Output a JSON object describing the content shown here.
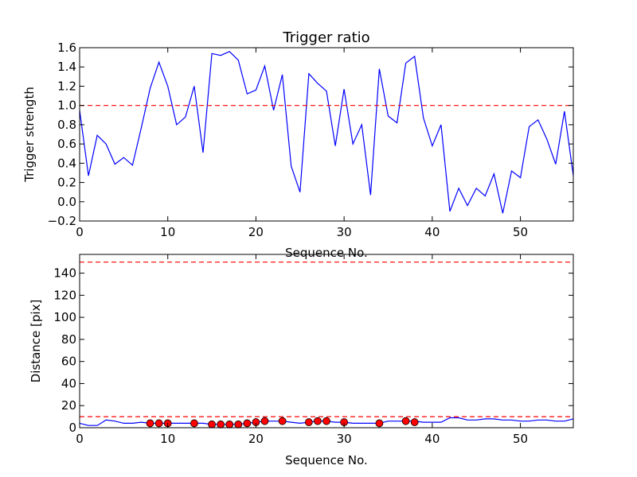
{
  "chart_data": [
    {
      "type": "line",
      "title": "Trigger ratio",
      "xlabel": "Sequence No.",
      "ylabel": "Trigger strength",
      "xlim": [
        0,
        56
      ],
      "ylim": [
        -0.2,
        1.6
      ],
      "xticks": [
        0,
        10,
        20,
        30,
        40,
        50
      ],
      "xtick_labels": [
        "0",
        "10",
        "20",
        "30",
        "40",
        "50"
      ],
      "yticks": [
        -0.2,
        0.0,
        0.2,
        0.4,
        0.6,
        0.8,
        1.0,
        1.2,
        1.4,
        1.6
      ],
      "ytick_labels": [
        "−0.2",
        "0.0",
        "0.2",
        "0.4",
        "0.6",
        "0.8",
        "1.0",
        "1.2",
        "1.4",
        "1.6"
      ],
      "grid": false,
      "series": [
        {
          "color": "#0000ff",
          "style": "solid",
          "x": [
            0,
            1,
            2,
            3,
            4,
            5,
            6,
            7,
            8,
            9,
            10,
            11,
            12,
            13,
            14,
            15,
            16,
            17,
            18,
            19,
            20,
            21,
            22,
            23,
            24,
            25,
            26,
            27,
            28,
            29,
            30,
            31,
            32,
            33,
            34,
            35,
            36,
            37,
            38,
            39,
            40,
            41,
            42,
            43,
            44,
            45,
            46,
            47,
            48,
            49,
            50,
            51,
            52,
            53,
            54,
            55,
            56
          ],
          "y": [
            0.95,
            0.27,
            0.69,
            0.6,
            0.39,
            0.46,
            0.38,
            0.77,
            1.18,
            1.45,
            1.2,
            0.8,
            0.88,
            1.2,
            0.51,
            1.54,
            1.52,
            1.56,
            1.47,
            1.12,
            1.16,
            1.41,
            0.95,
            1.32,
            0.37,
            0.1,
            1.33,
            1.23,
            1.15,
            0.58,
            1.17,
            0.6,
            0.8,
            0.07,
            1.38,
            0.89,
            0.82,
            1.44,
            1.51,
            0.87,
            0.58,
            0.8,
            -0.1,
            0.14,
            -0.04,
            0.14,
            0.06,
            0.29,
            -0.12,
            0.32,
            0.25,
            0.78,
            0.85,
            0.65,
            0.39,
            0.94,
            0.27
          ]
        },
        {
          "color": "#ff0000",
          "style": "dashed",
          "x": [
            0,
            56
          ],
          "y": [
            1.0,
            1.0
          ]
        }
      ]
    },
    {
      "type": "line",
      "title": "",
      "xlabel": "Sequence No.",
      "ylabel": "Distance [pix]",
      "xlim": [
        0,
        56
      ],
      "ylim": [
        0,
        157
      ],
      "xticks": [
        0,
        10,
        20,
        30,
        40,
        50
      ],
      "xtick_labels": [
        "0",
        "10",
        "20",
        "30",
        "40",
        "50"
      ],
      "yticks": [
        0,
        20,
        40,
        60,
        80,
        100,
        120,
        140
      ],
      "ytick_labels": [
        "0",
        "20",
        "40",
        "60",
        "80",
        "100",
        "120",
        "140"
      ],
      "grid": false,
      "series": [
        {
          "color": "#0000ff",
          "style": "solid",
          "x": [
            0,
            1,
            2,
            3,
            4,
            5,
            6,
            7,
            8,
            9,
            10,
            11,
            12,
            13,
            14,
            15,
            16,
            17,
            18,
            19,
            20,
            21,
            22,
            23,
            24,
            25,
            26,
            27,
            28,
            29,
            30,
            31,
            32,
            33,
            34,
            35,
            36,
            37,
            38,
            39,
            40,
            41,
            42,
            43,
            44,
            45,
            46,
            47,
            48,
            49,
            50,
            51,
            52,
            53,
            54,
            55,
            56
          ],
          "y": [
            4,
            2,
            2,
            7,
            6,
            4,
            4,
            5,
            4,
            4,
            4,
            4,
            4,
            4,
            4,
            3,
            3,
            3,
            3,
            4,
            5,
            6,
            6,
            6,
            5,
            4,
            5,
            6,
            6,
            5,
            5,
            4,
            4,
            4,
            4,
            6,
            6,
            6,
            6,
            5,
            5,
            5,
            9,
            9,
            7,
            7,
            8,
            8,
            7,
            7,
            6,
            6,
            7,
            7,
            6,
            6,
            8
          ]
        },
        {
          "color": "#ff0000",
          "style": "dashed",
          "x": [
            0,
            56
          ],
          "y": [
            150,
            150
          ]
        },
        {
          "color": "#ff0000",
          "style": "dashed",
          "x": [
            0,
            56
          ],
          "y": [
            10,
            10
          ]
        },
        {
          "color": "#ff0000",
          "style": "markers",
          "marker": "circle",
          "x": [
            8,
            9,
            10,
            13,
            15,
            16,
            17,
            18,
            19,
            20,
            21,
            23,
            26,
            27,
            28,
            30,
            34,
            37,
            38
          ],
          "y": [
            4,
            4,
            4,
            4,
            3,
            3,
            3,
            3,
            4,
            5,
            6,
            6,
            5,
            6,
            6,
            5,
            4,
            6,
            5
          ]
        }
      ]
    }
  ]
}
